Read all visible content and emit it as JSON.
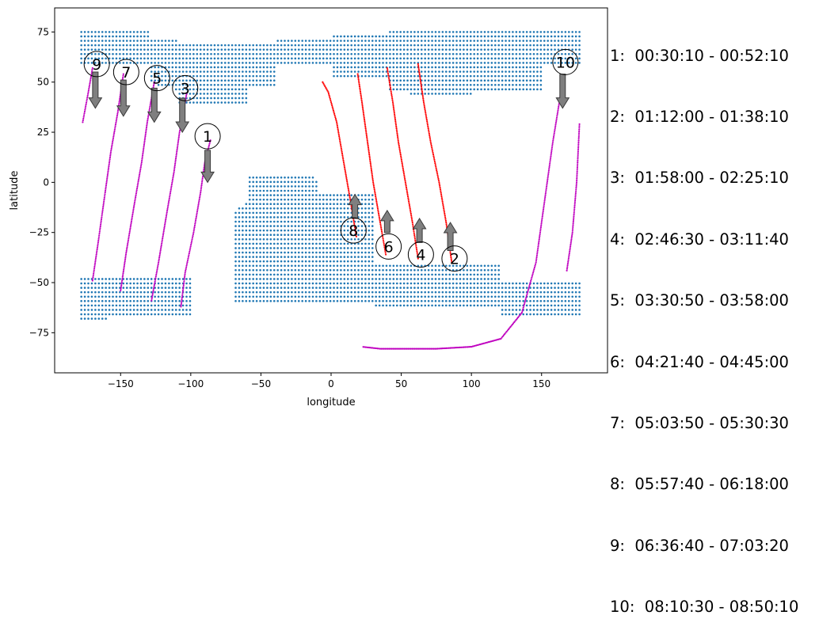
{
  "chart_data": {
    "type": "scatter",
    "xlabel": "longitude",
    "ylabel": "latitude",
    "xlim": [
      -197,
      197
    ],
    "ylim": [
      -95,
      87
    ],
    "xticks": [
      -150,
      -100,
      -50,
      0,
      50,
      100,
      150
    ],
    "yticks": [
      -75,
      -50,
      -25,
      0,
      25,
      50,
      75
    ],
    "grid": false,
    "colors": {
      "land": "#1f77b4",
      "descending_track": "#bf00bf",
      "ascending_track": "#ff0000",
      "arrow": "#7f7f7f"
    },
    "land_regions": [
      {
        "lat_range": [
          38,
          77
        ],
        "lon_range": [
          -178,
          178
        ],
        "note_shape": "northern band"
      },
      {
        "lat_range": [
          -68,
          4
        ],
        "lon_range": [
          -180,
          180
        ],
        "note_shape": "southern mass"
      }
    ],
    "passes": [
      {
        "id": "1",
        "label": "1",
        "time": "00:30:10 - 00:52:10",
        "direction": "descending",
        "track": [
          [
            -86,
            21
          ],
          [
            -90,
            10
          ],
          [
            -93,
            -5
          ],
          [
            -98,
            -25
          ],
          [
            -104,
            -45
          ],
          [
            -107,
            -62
          ]
        ],
        "label_pos": [
          -88,
          23
        ],
        "arrow_from": [
          -88,
          16
        ],
        "arrow_to": [
          -88,
          0
        ]
      },
      {
        "id": "2",
        "label": "2",
        "time": "01:12:00 - 01:38:10",
        "direction": "ascending",
        "track": [
          [
            86,
            -40
          ],
          [
            82,
            -20
          ],
          [
            77,
            0
          ],
          [
            71,
            20
          ],
          [
            66,
            40
          ],
          [
            62,
            59
          ]
        ],
        "label_pos": [
          88,
          -38
        ],
        "arrow_from": [
          85,
          -34
        ],
        "arrow_to": [
          85,
          -20
        ]
      },
      {
        "id": "3",
        "label": "3",
        "time": "01:58:00 - 02:25:10",
        "direction": "descending",
        "track": [
          [
            -103,
            44
          ],
          [
            -108,
            25
          ],
          [
            -112,
            5
          ],
          [
            -117,
            -15
          ],
          [
            -123,
            -40
          ],
          [
            -128,
            -59
          ]
        ],
        "label_pos": [
          -104,
          47
        ],
        "arrow_from": [
          -106,
          42
        ],
        "arrow_to": [
          -106,
          25
        ]
      },
      {
        "id": "4",
        "label": "4",
        "time": "02:46:30 - 03:11:40",
        "direction": "ascending",
        "track": [
          [
            62,
            -38
          ],
          [
            58,
            -20
          ],
          [
            53,
            0
          ],
          [
            48,
            20
          ],
          [
            44,
            40
          ],
          [
            40,
            57
          ]
        ],
        "label_pos": [
          64,
          -36
        ],
        "arrow_from": [
          63,
          -30
        ],
        "arrow_to": [
          63,
          -18
        ]
      },
      {
        "id": "5",
        "label": "5",
        "time": "03:30:50 - 03:58:00",
        "direction": "descending",
        "track": [
          [
            -126,
            50
          ],
          [
            -131,
            30
          ],
          [
            -135,
            10
          ],
          [
            -140,
            -10
          ],
          [
            -146,
            -35
          ],
          [
            -150,
            -54
          ]
        ],
        "label_pos": [
          -124,
          52
        ],
        "arrow_from": [
          -126,
          47
        ],
        "arrow_to": [
          -126,
          30
        ]
      },
      {
        "id": "6",
        "label": "6",
        "time": "04:21:40 - 04:45:00",
        "direction": "ascending",
        "track": [
          [
            39,
            -36
          ],
          [
            35,
            -20
          ],
          [
            30,
            0
          ],
          [
            26,
            20
          ],
          [
            22,
            40
          ],
          [
            19,
            54
          ]
        ],
        "label_pos": [
          41,
          -32
        ],
        "arrow_from": [
          40,
          -25
        ],
        "arrow_to": [
          40,
          -14
        ]
      },
      {
        "id": "7",
        "label": "7",
        "time": "05:03:50 - 05:30:30",
        "direction": "descending",
        "track": [
          [
            -148,
            54
          ],
          [
            -152,
            35
          ],
          [
            -157,
            15
          ],
          [
            -161,
            -5
          ],
          [
            -166,
            -30
          ],
          [
            -170,
            -49
          ]
        ],
        "label_pos": [
          -146,
          55
        ],
        "arrow_from": [
          -148,
          51
        ],
        "arrow_to": [
          -148,
          33
        ]
      },
      {
        "id": "8",
        "label": "8",
        "time": "05:57:40 - 06:18:00",
        "direction": "ascending",
        "track": [
          [
            18,
            -27
          ],
          [
            14,
            -10
          ],
          [
            9,
            10
          ],
          [
            4,
            30
          ],
          [
            -2,
            45
          ],
          [
            -6,
            50
          ]
        ],
        "label_pos": [
          16,
          -24
        ],
        "arrow_from": [
          17,
          -18
        ],
        "arrow_to": [
          17,
          -6
        ]
      },
      {
        "id": "9",
        "label": "9",
        "time": "06:36:40 - 07:03:20",
        "direction": "descending",
        "track": [
          [
            -170,
            57
          ],
          [
            -173,
            45
          ],
          [
            -177,
            30
          ]
        ],
        "label_pos": [
          -167,
          59
        ],
        "arrow_from": [
          -168,
          55
        ],
        "arrow_to": [
          -168,
          37
        ]
      },
      {
        "id": "10",
        "label": "10",
        "time": "08:10:30 - 08:50:10",
        "direction": "descending",
        "track": [
          [
            165,
            50
          ],
          [
            158,
            20
          ],
          [
            152,
            -10
          ],
          [
            146,
            -40
          ],
          [
            136,
            -65
          ],
          [
            121,
            -78
          ],
          [
            100,
            -82
          ],
          [
            75,
            -83
          ],
          [
            55,
            -83
          ],
          [
            35,
            -83
          ],
          [
            22,
            -82
          ],
          [
            177,
            29
          ],
          [
            175,
            0
          ],
          [
            172,
            -25
          ],
          [
            168,
            -44
          ]
        ],
        "label_pos": [
          167,
          60
        ],
        "arrow_from": [
          165,
          54
        ],
        "arrow_to": [
          165,
          37
        ]
      }
    ]
  }
}
